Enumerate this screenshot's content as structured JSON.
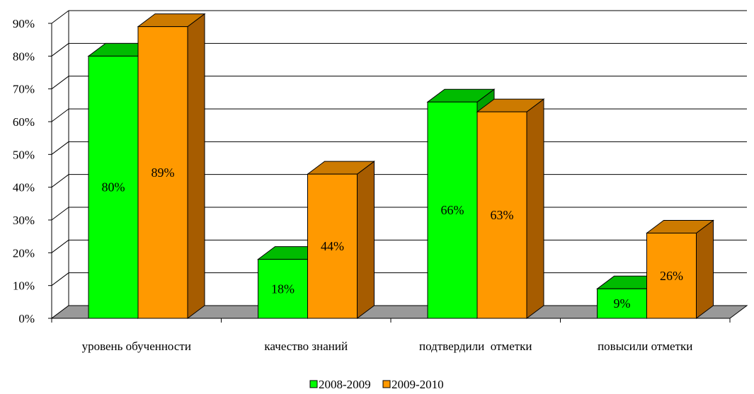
{
  "chart_data": {
    "type": "bar",
    "categories": [
      "уровень обученности",
      "качество знаний",
      "подтвердили  отметки",
      "повысили отметки"
    ],
    "series": [
      {
        "name": "2008-2009",
        "values": [
          80,
          18,
          66,
          9
        ],
        "labels": [
          "80%",
          "18%",
          "66%",
          "9%"
        ],
        "color": "#00ff00",
        "top_color": "#00bb00",
        "side_color": "#00a000"
      },
      {
        "name": "2009-2010",
        "values": [
          89,
          44,
          63,
          26
        ],
        "labels": [
          "89%",
          "44%",
          "63%",
          "26%"
        ],
        "color": "#ff9900",
        "top_color": "#cc7a00",
        "side_color": "#a65c00"
      }
    ],
    "y_ticks": [
      "0%",
      "10%",
      "20%",
      "30%",
      "40%",
      "50%",
      "60%",
      "70%",
      "80%",
      "90%"
    ],
    "ylim": [
      0,
      90
    ],
    "grid": true,
    "legend_position": "bottom",
    "floor_color": "#999999"
  }
}
